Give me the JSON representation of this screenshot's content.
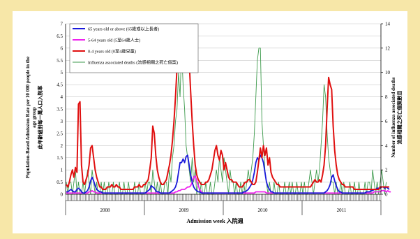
{
  "colors": {
    "background": "#f7e7a8",
    "plot": "#ffffff"
  },
  "chart_data": {
    "type": "line",
    "xlabel": "Admission week 入院週",
    "ylabel_left": [
      "Population-Based Admission Rate per 10 000 people in the",
      "age group",
      "此年齡組別每一萬人口入院率"
    ],
    "ylabel_right": [
      "Number of influenza associated deaths",
      "流感相關之死亡個案數目"
    ],
    "ylim_left": [
      0,
      7
    ],
    "ylim_right": [
      0,
      14
    ],
    "yticks_left": [
      "0",
      "0.5",
      "1",
      "1.5",
      "2",
      "2.5",
      "3",
      "3.5",
      "4",
      "4.5",
      "5",
      "5.5",
      "6",
      "6.5",
      "7"
    ],
    "yticks_right": [
      "0",
      "2",
      "4",
      "6",
      "8",
      "10",
      "12",
      "14"
    ],
    "year_labels": [
      "2008",
      "2009",
      "2010",
      "2011"
    ],
    "weeks_per_year": 52,
    "grid": true,
    "legend_position": "top-left",
    "series": [
      {
        "name": "65 years old or above (65歲或以上長者)",
        "axis": "left",
        "color": "#1a1adb",
        "values": [
          0.1,
          0.1,
          0.15,
          0.2,
          0.15,
          0.1,
          0.1,
          0.2,
          0.25,
          0.2,
          0.1,
          0.05,
          0.05,
          0.1,
          0.15,
          0.3,
          0.55,
          0.7,
          0.55,
          0.35,
          0.2,
          0.15,
          0.1,
          0.1,
          0.05,
          0.05,
          0.05,
          0.05,
          0.05,
          0.05,
          0.05,
          0.05,
          0.05,
          0.05,
          0.05,
          0.05,
          0.05,
          0.05,
          0.05,
          0.05,
          0.05,
          0.05,
          0.05,
          0.05,
          0.05,
          0.05,
          0.05,
          0.05,
          0.05,
          0.05,
          0.05,
          0.05,
          0.05,
          0.1,
          0.15,
          0.2,
          0.35,
          0.3,
          0.25,
          0.15,
          0.1,
          0.1,
          0.05,
          0.05,
          0.05,
          0.05,
          0.05,
          0.05,
          0.05,
          0.1,
          0.15,
          0.2,
          0.3,
          0.5,
          0.9,
          1.3,
          1.3,
          1.45,
          1.3,
          1.55,
          1.6,
          1.2,
          0.8,
          0.5,
          0.3,
          0.2,
          0.15,
          0.1,
          0.1,
          0.05,
          0.05,
          0.05,
          0.05,
          0.05,
          0.05,
          0.05,
          0.05,
          0.05,
          0.05,
          0.05,
          0.05,
          0.05,
          0.05,
          0.05,
          0.05,
          0.05,
          0.05,
          0.05,
          0.05,
          0.05,
          0.05,
          0.05,
          0.05,
          0.05,
          0.05,
          0.05,
          0.05,
          0.1,
          0.1,
          0.15,
          0.2,
          0.3,
          0.4,
          0.6,
          0.9,
          1.3,
          1.5,
          1.4,
          1.6,
          1.5,
          1.3,
          0.9,
          0.5,
          0.3,
          0.2,
          0.1,
          0.1,
          0.05,
          0.05,
          0.05,
          0.05,
          0.05,
          0.05,
          0.05,
          0.05,
          0.05,
          0.05,
          0.05,
          0.05,
          0.05,
          0.05,
          0.05,
          0.05,
          0.05,
          0.05,
          0.05,
          0.05,
          0.05,
          0.05,
          0.05,
          0.05,
          0.05,
          0.05,
          0.05,
          0.05,
          0.05,
          0.05,
          0.05,
          0.05,
          0.05,
          0.05,
          0.1,
          0.15,
          0.25,
          0.4,
          0.7,
          0.8,
          0.55,
          0.35,
          0.2,
          0.1,
          0.1,
          0.05,
          0.05,
          0.05,
          0.05,
          0.05,
          0.05,
          0.05,
          0.05,
          0.05,
          0.05,
          0.05,
          0.05,
          0.05,
          0.05,
          0.05,
          0.05,
          0.1,
          0.1,
          0.1,
          0.15,
          0.15,
          0.2,
          0.2,
          0.25,
          0.25,
          0.25,
          0.3,
          0.3,
          0.25,
          0.3,
          0.25,
          0.2
        ]
      },
      {
        "name": "5-64 years old (5至64歲人士)",
        "axis": "left",
        "color": "#ee22ee",
        "values": [
          0.05,
          0.05,
          0.05,
          0.05,
          0.05,
          0.05,
          0.05,
          0.05,
          0.05,
          0.05,
          0.05,
          0.05,
          0.05,
          0.05,
          0.05,
          0.1,
          0.1,
          0.15,
          0.1,
          0.1,
          0.05,
          0.05,
          0.05,
          0.05,
          0.05,
          0.05,
          0.05,
          0.05,
          0.05,
          0.05,
          0.05,
          0.05,
          0.05,
          0.05,
          0.05,
          0.05,
          0.05,
          0.05,
          0.05,
          0.05,
          0.05,
          0.05,
          0.05,
          0.05,
          0.05,
          0.05,
          0.05,
          0.05,
          0.05,
          0.05,
          0.05,
          0.05,
          0.05,
          0.05,
          0.05,
          0.05,
          0.05,
          0.05,
          0.05,
          0.05,
          0.05,
          0.05,
          0.05,
          0.05,
          0.05,
          0.05,
          0.05,
          0.05,
          0.05,
          0.05,
          0.05,
          0.05,
          0.1,
          0.1,
          0.15,
          0.15,
          0.2,
          0.2,
          0.2,
          0.25,
          0.3,
          0.3,
          0.35,
          0.5,
          0.7,
          0.75,
          0.55,
          0.35,
          0.2,
          0.1,
          0.05,
          0.05,
          0.05,
          0.05,
          0.05,
          0.05,
          0.05,
          0.05,
          0.05,
          0.05,
          0.05,
          0.05,
          0.05,
          0.05,
          0.05,
          0.05,
          0.05,
          0.05,
          0.05,
          0.05,
          0.05,
          0.05,
          0.05,
          0.05,
          0.05,
          0.05,
          0.05,
          0.05,
          0.05,
          0.05,
          0.05,
          0.05,
          0.05,
          0.05,
          0.05,
          0.1,
          0.1,
          0.1,
          0.1,
          0.1,
          0.1,
          0.1,
          0.05,
          0.05,
          0.05,
          0.05,
          0.05,
          0.05,
          0.05,
          0.05,
          0.05,
          0.05,
          0.05,
          0.05,
          0.05,
          0.05,
          0.05,
          0.05,
          0.05,
          0.05,
          0.05,
          0.05,
          0.05,
          0.05,
          0.05,
          0.05,
          0.05,
          0.05,
          0.05,
          0.05,
          0.05,
          0.05,
          0.05,
          0.05,
          0.05,
          0.05,
          0.05,
          0.05,
          0.05,
          0.05,
          0.05,
          0.05,
          0.05,
          0.05,
          0.05,
          0.05,
          0.05,
          0.05,
          0.05,
          0.05,
          0.05,
          0.05,
          0.05,
          0.05,
          0.05,
          0.05,
          0.05,
          0.05,
          0.05,
          0.05,
          0.05,
          0.05,
          0.05,
          0.05,
          0.05,
          0.05,
          0.05,
          0.05,
          0.05,
          0.05,
          0.05,
          0.05,
          0.05,
          0.1,
          0.1,
          0.1,
          0.1,
          0.1,
          0.15,
          0.15,
          0.15,
          0.1,
          0.15,
          0.1,
          0.1
        ]
      },
      {
        "name": "0-4 years old (0至4歲兒童)",
        "axis": "left",
        "color": "#e01010",
        "values": [
          0.4,
          0.3,
          0.5,
          0.8,
          1.0,
          0.7,
          1.1,
          0.9,
          3.7,
          3.8,
          1.2,
          0.5,
          0.4,
          0.6,
          0.8,
          1.2,
          1.9,
          2.0,
          1.5,
          1.0,
          0.7,
          0.5,
          0.3,
          0.3,
          0.2,
          0.2,
          0.2,
          0.3,
          0.3,
          0.3,
          0.4,
          0.3,
          0.3,
          0.4,
          0.3,
          0.3,
          0.2,
          0.2,
          0.2,
          0.2,
          0.2,
          0.2,
          0.2,
          0.2,
          0.2,
          0.3,
          0.3,
          0.3,
          0.4,
          0.3,
          0.3,
          0.4,
          0.4,
          0.5,
          0.6,
          1.0,
          1.5,
          2.8,
          2.5,
          1.6,
          1.0,
          0.7,
          0.5,
          0.4,
          0.4,
          0.5,
          0.6,
          0.9,
          1.2,
          1.6,
          2.2,
          3.0,
          4.0,
          5.2,
          6.5,
          6.1,
          6.2,
          5.8,
          6.1,
          6.0,
          5.9,
          5.5,
          4.2,
          3.0,
          2.0,
          1.2,
          0.8,
          0.6,
          0.5,
          0.4,
          0.4,
          0.4,
          0.5,
          0.5,
          0.6,
          0.8,
          1.0,
          1.4,
          1.8,
          2.0,
          1.6,
          1.4,
          1.8,
          1.6,
          1.0,
          1.3,
          1.0,
          0.7,
          0.6,
          0.6,
          0.5,
          0.5,
          0.5,
          0.4,
          0.3,
          0.3,
          0.3,
          0.4,
          0.5,
          0.5,
          0.6,
          0.6,
          0.5,
          0.4,
          0.4,
          0.5,
          0.9,
          1.4,
          1.9,
          1.5,
          2.0,
          1.6,
          1.9,
          1.2,
          1.5,
          0.9,
          0.7,
          0.6,
          0.5,
          0.4,
          0.4,
          0.3,
          0.3,
          0.3,
          0.3,
          0.3,
          0.3,
          0.3,
          0.3,
          0.3,
          0.3,
          0.3,
          0.3,
          0.3,
          0.3,
          0.3,
          0.3,
          0.3,
          0.3,
          0.3,
          0.3,
          0.3,
          0.4,
          0.5,
          0.6,
          0.5,
          0.5,
          0.6,
          0.5,
          0.8,
          1.2,
          2.0,
          3.5,
          4.8,
          4.5,
          4.3,
          2.8,
          1.8,
          1.2,
          0.8,
          0.6,
          0.5,
          0.4,
          0.4,
          0.3,
          0.3,
          0.3,
          0.3,
          0.3,
          0.3,
          0.2,
          0.2,
          0.2,
          0.2,
          0.2,
          0.2,
          0.2,
          0.2,
          0.2,
          0.2,
          0.2,
          0.2,
          0.2,
          0.2,
          0.2,
          0.2,
          0.2,
          0.3,
          0.3,
          0.3,
          0.3,
          0.3,
          0.3,
          0.3
        ]
      },
      {
        "name": "Influenza associated deaths (流感相關之死亡個案)",
        "axis": "right",
        "color": "#3d9a4c",
        "values": [
          1,
          0,
          1,
          1,
          0,
          1,
          2,
          0,
          1,
          0,
          0,
          1,
          0,
          1,
          2,
          1,
          0,
          2,
          1,
          0,
          1,
          0,
          0,
          1,
          0,
          1,
          0,
          0,
          1,
          0,
          0,
          1,
          0,
          0,
          0,
          1,
          0,
          0,
          1,
          0,
          0,
          1,
          0,
          0,
          0,
          1,
          0,
          0,
          1,
          0,
          0,
          0,
          1,
          0,
          1,
          1,
          0,
          2,
          1,
          0,
          1,
          0,
          1,
          0,
          0,
          1,
          1,
          0,
          2,
          1,
          3,
          4,
          6,
          7,
          10,
          8,
          12,
          9,
          7,
          4,
          3,
          2,
          1,
          3,
          1,
          2,
          0,
          1,
          0,
          1,
          0,
          0,
          1,
          0,
          0,
          1,
          0,
          0,
          1,
          2,
          1,
          3,
          2,
          1,
          3,
          2,
          1,
          0,
          2,
          1,
          1,
          0,
          1,
          0,
          0,
          1,
          0,
          1,
          0,
          1,
          2,
          1,
          2,
          3,
          5,
          8,
          11,
          12,
          12,
          6,
          4,
          2,
          1,
          0,
          1,
          0,
          0,
          1,
          0,
          0,
          1,
          0,
          0,
          0,
          1,
          0,
          0,
          1,
          0,
          1,
          0,
          0,
          1,
          0,
          0,
          1,
          0,
          1,
          0,
          0,
          1,
          2,
          1,
          0,
          1,
          2,
          1,
          2,
          4,
          6,
          9,
          8,
          5,
          3,
          2,
          1,
          1,
          0,
          1,
          0,
          0,
          1,
          0,
          1,
          0,
          0,
          0,
          1,
          0,
          0,
          1,
          0,
          0,
          1,
          0,
          0,
          0,
          1,
          0,
          1,
          1,
          0,
          2,
          1,
          0,
          1,
          0,
          1,
          2,
          1,
          0,
          1
        ]
      }
    ]
  }
}
